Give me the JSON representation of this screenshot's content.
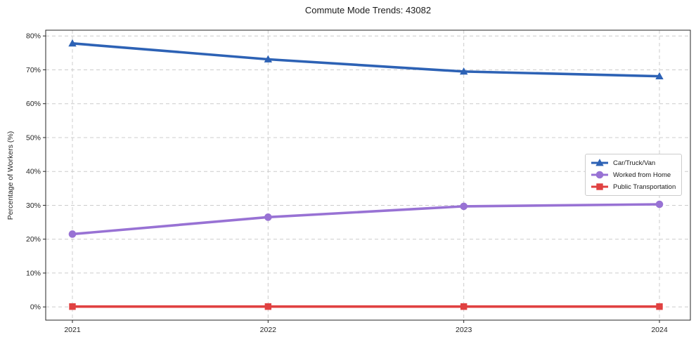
{
  "chart_data": {
    "type": "line",
    "title": "Commute Mode Trends: 43082",
    "ylabel": "Percentage of Workers (%)",
    "xlabel": "",
    "categories": [
      "2021",
      "2022",
      "2023",
      "2024"
    ],
    "series": [
      {
        "name": "Car/Truck/Van",
        "marker": "triangle",
        "color": "#2d62b5",
        "values": [
          77.8,
          73.1,
          69.5,
          68.1
        ]
      },
      {
        "name": "Worked from Home",
        "marker": "circle",
        "color": "#9872d4",
        "values": [
          21.5,
          26.5,
          29.7,
          30.3
        ]
      },
      {
        "name": "Public Transportation",
        "marker": "square",
        "color": "#e04141",
        "values": [
          0.1,
          0.1,
          0.1,
          0.1
        ]
      }
    ],
    "ylim": [
      0,
      80
    ],
    "ytick_step": 10,
    "yticks": [
      "0%",
      "10%",
      "20%",
      "30%",
      "40%",
      "50%",
      "60%",
      "70%",
      "80%"
    ],
    "grid": true,
    "grid_color": "#cccccc",
    "grid_style": "dashed",
    "axis_color": "#262626",
    "legend_position": "center right"
  }
}
